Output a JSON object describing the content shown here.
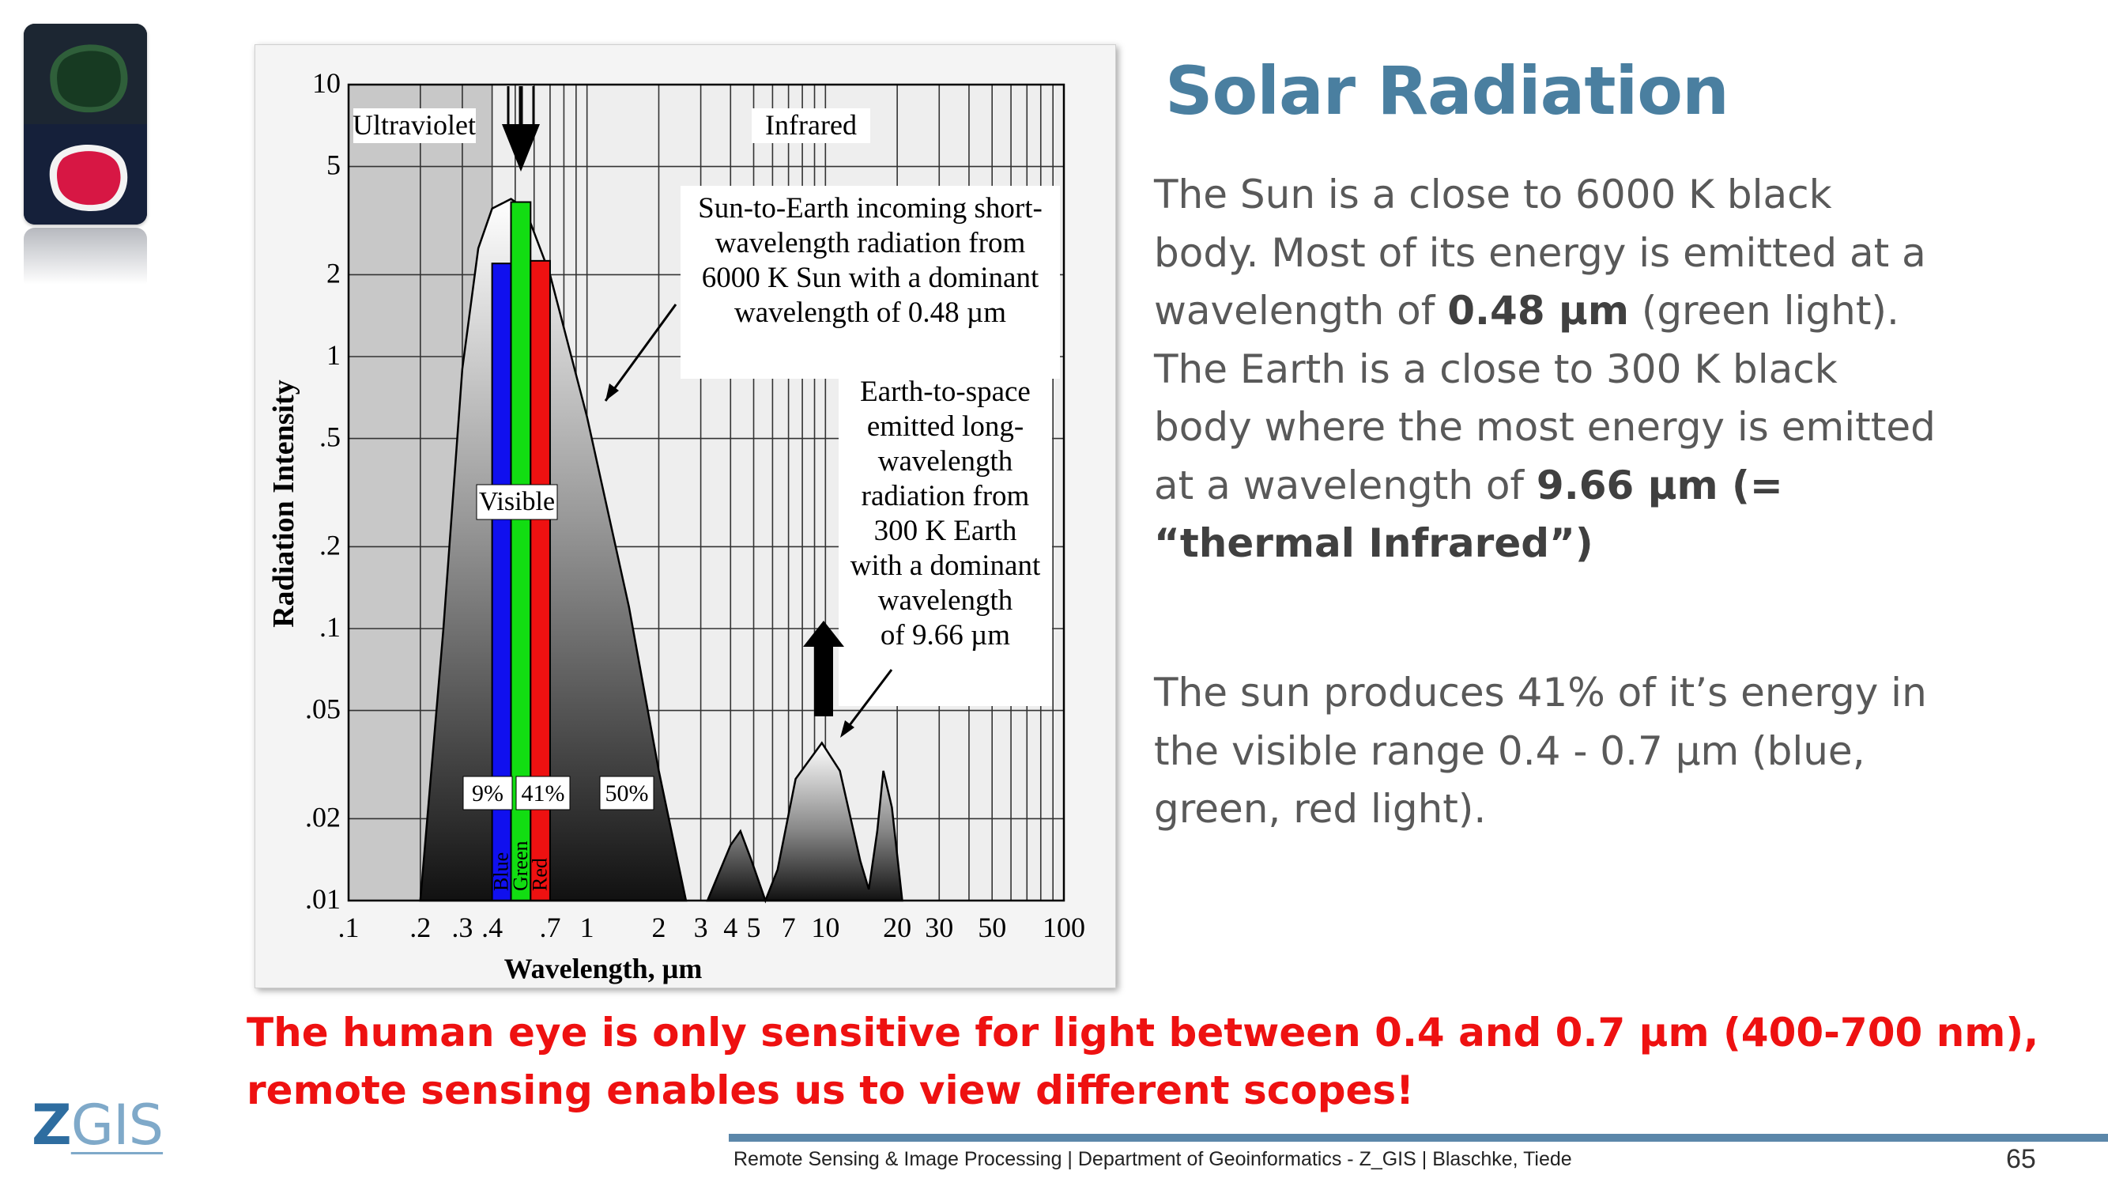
{
  "slide": {
    "title": "Solar Radiation",
    "paragraph1": {
      "t1": "The Sun is a close to 6000 K black body. Most of its energy is emitted at a wavelength of ",
      "b1": "0.48 µm",
      "t2": " (green light). The Earth is a close to 300 K black body where the most energy is emitted at a wavelength of ",
      "b2": "9.66 µm (= “thermal Infrared”)"
    },
    "paragraph2": "The sun produces 41% of it’s energy in the visible range 0.4 - 0.7 µm (blue, green, red light).",
    "warning_line1": "The human eye is only sensitive for light between 0.4 and 0.7 µm (400-700 nm),",
    "warning_line2": "remote sensing enables us to view different scopes!",
    "logo_z": "Z",
    "logo_gis": "GIS",
    "footer": "Remote Sensing & Image Processing | Department of Geoinformatics - Z_GIS | Blaschke, Tiede",
    "page_number": "65"
  },
  "chart_data": {
    "type": "area",
    "xlabel": "Wavelength, µm",
    "ylabel": "Radiation Intensity",
    "x_scale": "log",
    "y_scale": "log",
    "xlim": [
      0.1,
      100
    ],
    "ylim": [
      0.01,
      10
    ],
    "x_ticks": [
      {
        "v": 0.1,
        "label": ".1"
      },
      {
        "v": 0.2,
        "label": ".2"
      },
      {
        "v": 0.3,
        "label": ".3"
      },
      {
        "v": 0.4,
        "label": ".4"
      },
      {
        "v": 0.7,
        "label": ".7"
      },
      {
        "v": 1,
        "label": "1"
      },
      {
        "v": 2,
        "label": "2"
      },
      {
        "v": 3,
        "label": "3"
      },
      {
        "v": 4,
        "label": "4"
      },
      {
        "v": 5,
        "label": "5"
      },
      {
        "v": 7,
        "label": "7"
      },
      {
        "v": 10,
        "label": "10"
      },
      {
        "v": 20,
        "label": "20"
      },
      {
        "v": 30,
        "label": "30"
      },
      {
        "v": 50,
        "label": "50"
      },
      {
        "v": 100,
        "label": "100"
      }
    ],
    "y_ticks": [
      {
        "v": 0.01,
        "label": ".01"
      },
      {
        "v": 0.02,
        "label": ".02"
      },
      {
        "v": 0.05,
        "label": ".05"
      },
      {
        "v": 0.1,
        "label": ".1"
      },
      {
        "v": 0.2,
        "label": ".2"
      },
      {
        "v": 0.5,
        "label": ".5"
      },
      {
        "v": 1,
        "label": "1"
      },
      {
        "v": 2,
        "label": "2"
      },
      {
        "v": 5,
        "label": "5"
      },
      {
        "v": 10,
        "label": "10"
      }
    ],
    "series": [
      {
        "name": "Sun-to-Earth incoming short-wavelength radiation",
        "points": [
          [
            0.2,
            0.01
          ],
          [
            0.25,
            0.1
          ],
          [
            0.3,
            0.9
          ],
          [
            0.35,
            2.5
          ],
          [
            0.4,
            3.5
          ],
          [
            0.48,
            3.8
          ],
          [
            0.55,
            3.5
          ],
          [
            0.7,
            2.0
          ],
          [
            1.0,
            0.6
          ],
          [
            1.5,
            0.12
          ],
          [
            2.0,
            0.03
          ],
          [
            2.6,
            0.01
          ]
        ]
      },
      {
        "name": "Earth-to-space emitted long-wavelength radiation",
        "points": [
          [
            3.2,
            0.01
          ],
          [
            4.0,
            0.016
          ],
          [
            4.4,
            0.018
          ],
          [
            4.9,
            0.014
          ],
          [
            5.6,
            0.01
          ],
          [
            6.3,
            0.013
          ],
          [
            7.5,
            0.028
          ],
          [
            9.66,
            0.038
          ],
          [
            11.5,
            0.03
          ],
          [
            14,
            0.014
          ],
          [
            15.2,
            0.011
          ],
          [
            16.5,
            0.018
          ],
          [
            17.5,
            0.03
          ],
          [
            19,
            0.022
          ],
          [
            21,
            0.01
          ]
        ]
      }
    ],
    "visible_bands": [
      {
        "name": "Blue",
        "from": 0.4,
        "to": 0.48,
        "value": 2.2,
        "color": "#1010ee"
      },
      {
        "name": "Green",
        "from": 0.48,
        "to": 0.58,
        "value": 3.7,
        "color": "#12dd12"
      },
      {
        "name": "Red",
        "from": 0.58,
        "to": 0.7,
        "value": 2.25,
        "color": "#ee1111"
      }
    ],
    "regions": {
      "ultraviolet_to": 0.4,
      "infrared_from": 0.7,
      "ultraviolet": "Ultraviolet",
      "infrared": "Infrared",
      "visible": "Visible"
    },
    "shares": {
      "uv": "9%",
      "visible": "41%",
      "ir": "50%"
    },
    "sun_annotation": [
      "Sun-to-Earth incoming short-",
      "wavelength radiation from",
      "6000 K Sun with a dominant",
      "wavelength of 0.48 µm"
    ],
    "earth_annotation": [
      "Earth-to-space",
      "emitted long-",
      "wavelength",
      "radiation from",
      "300 K Earth",
      "with a dominant",
      "wavelength",
      "of 9.66 µm"
    ],
    "colors": {
      "blue": "#1010ee",
      "green": "#12dd12",
      "red": "#ee1111",
      "uv_shade": "#c8c8c8",
      "plot_bg": "#eeeeee"
    }
  }
}
